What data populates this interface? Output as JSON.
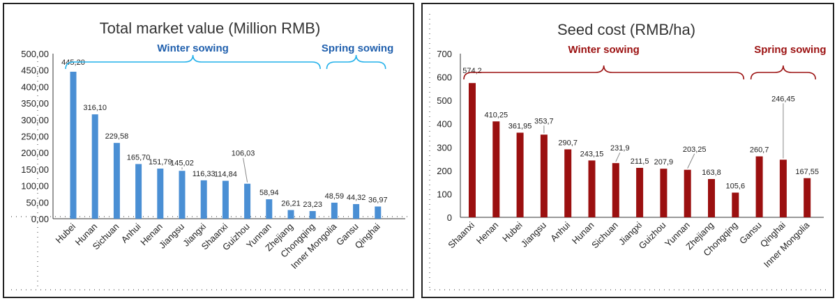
{
  "chart_data": [
    {
      "type": "bar",
      "title": "Total market value (Million RMB)",
      "categories": [
        "Hubei",
        "Hunan",
        "Sichuan",
        "Anhui",
        "Henan",
        "Jiangsu",
        "Jiangxi",
        "Shaanxi",
        "Guizhou",
        "Yunnan",
        "Zhejiang",
        "Chongqing",
        "Inner Mongolia",
        "Gansu",
        "Qinghai"
      ],
      "values": [
        445.2,
        316.1,
        229.58,
        165.7,
        151.79,
        145.02,
        116.33,
        114.84,
        106.03,
        58.94,
        26.21,
        23.23,
        48.59,
        44.32,
        36.97
      ],
      "value_labels": [
        "445,20",
        "316,10",
        "229,58",
        "165,70",
        "151,79",
        "145,02",
        "116,33",
        "114,84",
        "106,03",
        "58,94",
        "26,21",
        "23,23",
        "48,59",
        "44,32",
        "36,97"
      ],
      "ylim": [
        0,
        500
      ],
      "yticks": [
        "0,00",
        "50,00",
        "100,00",
        "150,00",
        "200,00",
        "250,00",
        "300,00",
        "350,00",
        "400,00",
        "450,00",
        "500,00"
      ],
      "bar_color": "#4a8fd4",
      "groups": [
        {
          "label": "Winter sowing",
          "from": 0,
          "to": 11
        },
        {
          "label": "Spring sowing",
          "from": 12,
          "to": 14
        }
      ],
      "group_text_color": "#1f5fad",
      "brace_color": "#21b0ea"
    },
    {
      "type": "bar",
      "title": "Seed cost (RMB/ha)",
      "categories": [
        "Shaanxi",
        "Henan",
        "Hubei",
        "Jiangsu",
        "Anhui",
        "Hunan",
        "Sichuan",
        "Jiangxi",
        "Guizhou",
        "Yunnan",
        "Zhejiang",
        "Chongqing",
        "Gansu",
        "Qinghai",
        "Inner Mongolia"
      ],
      "values": [
        574.2,
        410.25,
        361.95,
        353.7,
        290.7,
        243.15,
        231.9,
        211.5,
        207.9,
        203.25,
        163.8,
        105.6,
        260.7,
        246.45,
        167.55
      ],
      "value_labels": [
        "574,2",
        "410,25",
        "361,95",
        "353,7",
        "290,7",
        "243,15",
        "231,9",
        "211,5",
        "207,9",
        "203,25",
        "163,8",
        "105,6",
        "260,7",
        "246,45",
        "167,55"
      ],
      "ylim": [
        0,
        700
      ],
      "yticks": [
        "0",
        "100",
        "200",
        "300",
        "400",
        "500",
        "600",
        "700"
      ],
      "bar_color": "#9b1010",
      "groups": [
        {
          "label": "Winter sowing",
          "from": 0,
          "to": 11
        },
        {
          "label": "Spring sowing",
          "from": 12,
          "to": 14
        }
      ],
      "group_text_color": "#9b1010",
      "brace_color": "#9b1010"
    }
  ]
}
